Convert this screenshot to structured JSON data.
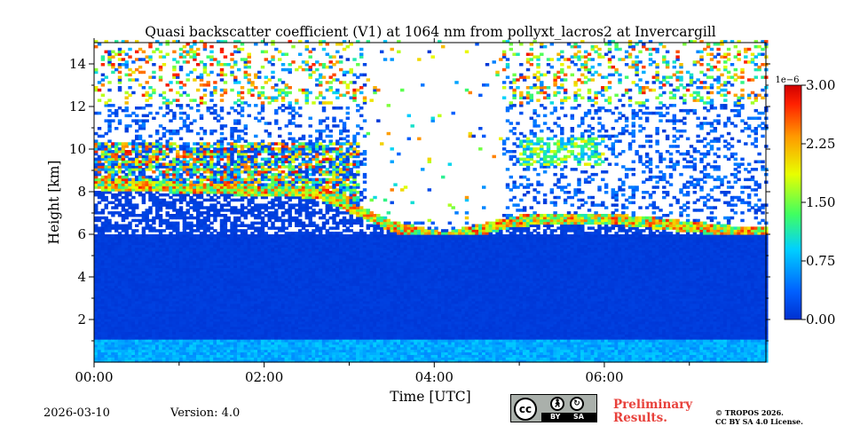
{
  "chart_data": {
    "type": "heatmap",
    "title": "Quasi backscatter coefficient (V1) at 1064 nm from pollyxt_lacros2 at Invercargill",
    "xlabel": "Time [UTC]",
    "ylabel": "Height [km]",
    "xlim_hours": [
      0,
      7.9
    ],
    "ylim_km": [
      0,
      15
    ],
    "x_ticks": [
      {
        "hours": 0,
        "label": "00:00"
      },
      {
        "hours": 2,
        "label": "02:00"
      },
      {
        "hours": 4,
        "label": "04:00"
      },
      {
        "hours": 6,
        "label": "06:00"
      }
    ],
    "x_minor_ticks_hours": [
      1,
      3,
      5,
      7
    ],
    "y_ticks": [
      {
        "km": 2,
        "label": "2"
      },
      {
        "km": 4,
        "label": "4"
      },
      {
        "km": 6,
        "label": "6"
      },
      {
        "km": 8,
        "label": "8"
      },
      {
        "km": 10,
        "label": "10"
      },
      {
        "km": 12,
        "label": "12"
      },
      {
        "km": 14,
        "label": "14"
      }
    ],
    "colorbar": {
      "cmap": "jet",
      "range": [
        0.0,
        3.0
      ],
      "exponent_label": "1e−6",
      "ticks": [
        {
          "value": 0.0,
          "label": "0.00"
        },
        {
          "value": 0.75,
          "label": "0.75"
        },
        {
          "value": 1.5,
          "label": "1.50"
        },
        {
          "value": 2.25,
          "label": "2.25"
        },
        {
          "value": 3.0,
          "label": "3.00"
        }
      ]
    },
    "features": {
      "near_surface_layer_km": [
        0,
        1.0
      ],
      "boundary_layer_top_km": 6.3,
      "cirrus_start": {
        "hours": 0,
        "km": 10.1
      },
      "cloud_base_descent": [
        {
          "hours": 0.0,
          "km": 8.2
        },
        {
          "hours": 2.6,
          "km": 7.8
        },
        {
          "hours": 3.5,
          "km": 6.2
        },
        {
          "hours": 4.1,
          "km": 5.7
        },
        {
          "hours": 5.0,
          "km": 6.5
        },
        {
          "hours": 6.0,
          "km": 6.6
        },
        {
          "hours": 7.5,
          "km": 6.0
        }
      ]
    }
  },
  "footer": {
    "date": "2026-03-10",
    "version": "Version: 4.0",
    "preliminary_line1": "Preliminary",
    "preliminary_line2": "Results.",
    "copyright_line1": "© TROPOS 2026.",
    "copyright_line2": "CC BY SA 4.0 License.",
    "license_badge": {
      "cc": "cc",
      "by": "BY",
      "sa": "SA"
    }
  }
}
